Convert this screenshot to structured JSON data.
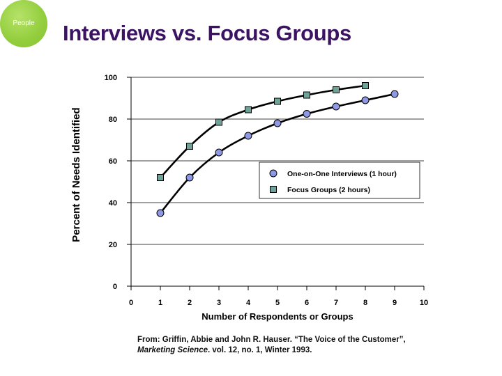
{
  "slide": {
    "badge_label": "People",
    "title": "Interviews vs. Focus Groups",
    "citation": {
      "line1": "From: Griffin, Abbie and John R. Hauser. “The Voice of the Customer”,",
      "journal": "Marketing Science",
      "line2_rest": ". vol. 12, no. 1, Winter 1993."
    }
  },
  "colors": {
    "title": "#3b1362",
    "badge": "#95cf3f",
    "interviews_marker": "#8f98e2",
    "focus_groups_marker": "#6fa39a",
    "curve": "#000000",
    "grid": "#000000"
  },
  "chart_data": {
    "type": "line",
    "xlabel": "Number of Respondents or Groups",
    "ylabel": "Percent of Needs Identified",
    "xlim": [
      0,
      10
    ],
    "ylim": [
      0,
      100
    ],
    "xticks": [
      0,
      1,
      2,
      3,
      4,
      5,
      6,
      7,
      8,
      9,
      10
    ],
    "yticks": [
      0,
      20,
      40,
      60,
      80,
      100
    ],
    "grid": "horizontal",
    "legend_position": "right",
    "series": [
      {
        "name": "One-on-One Interviews (1 hour)",
        "marker": "circle",
        "x": [
          1,
          2,
          3,
          4,
          5,
          6,
          7,
          8,
          9
        ],
        "y": [
          35,
          52,
          64,
          72,
          78,
          82.5,
          86,
          89,
          92
        ]
      },
      {
        "name": "Focus Groups (2 hours)",
        "marker": "square",
        "x": [
          1,
          2,
          3,
          4,
          5,
          6,
          7,
          8
        ],
        "y": [
          52,
          67,
          78.5,
          84.5,
          88.5,
          91.5,
          94,
          96
        ]
      }
    ]
  }
}
